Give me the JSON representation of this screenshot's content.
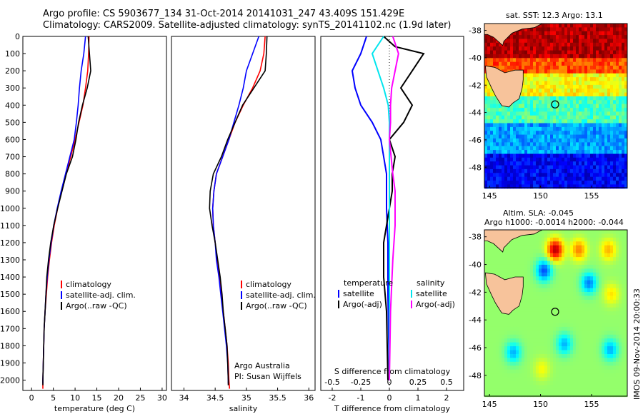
{
  "header": {
    "title_line1": "Argo profile: CS 5903677_134 31-Oct-2014 20141031_247 43.409S 151.429E",
    "title_line2": "Climatology: CARS2009. Satellite-adjusted climatology: synTS_20141102.nc (1.9d later)"
  },
  "colors": {
    "climatology": "#ff0000",
    "satellite": "#0000ff",
    "argo": "#000000",
    "satellite_s": "#00e5ee",
    "argo_s": "#ff00ff",
    "land": "#f7c39b"
  },
  "chart_data": [
    {
      "type": "line",
      "id": "temperature",
      "xlabel": "temperature (deg C)",
      "ylabel": "",
      "xlim": [
        -2,
        31
      ],
      "ylim": [
        2060,
        0
      ],
      "xticks": [
        0,
        5,
        10,
        15,
        20,
        25,
        30
      ],
      "yticks": [
        0,
        100,
        200,
        300,
        400,
        500,
        600,
        700,
        800,
        900,
        1000,
        1100,
        1200,
        1300,
        1400,
        1500,
        1600,
        1700,
        1800,
        1900,
        2000
      ],
      "legend": [
        "climatology",
        "satellite-adj. clim.",
        "Argo(..raw -QC)"
      ],
      "series": [
        {
          "name": "climatology",
          "color": "#ff0000",
          "points": [
            [
              13.2,
              0
            ],
            [
              13.1,
              100
            ],
            [
              12.9,
              200
            ],
            [
              12.4,
              300
            ],
            [
              11.8,
              400
            ],
            [
              10.9,
              500
            ],
            [
              10.0,
              600
            ],
            [
              9.0,
              700
            ],
            [
              7.9,
              800
            ],
            [
              6.9,
              900
            ],
            [
              6.0,
              1000
            ],
            [
              5.2,
              1100
            ],
            [
              4.6,
              1200
            ],
            [
              4.1,
              1300
            ],
            [
              3.7,
              1400
            ],
            [
              3.4,
              1500
            ],
            [
              3.1,
              1600
            ],
            [
              2.9,
              1700
            ],
            [
              2.8,
              1800
            ],
            [
              2.7,
              1900
            ],
            [
              2.6,
              2000
            ],
            [
              2.6,
              2050
            ]
          ]
        },
        {
          "name": "satellite-adj. clim.",
          "color": "#0000ff",
          "points": [
            [
              12.4,
              0
            ],
            [
              12.0,
              100
            ],
            [
              11.4,
              200
            ],
            [
              11.0,
              300
            ],
            [
              10.7,
              400
            ],
            [
              10.3,
              500
            ],
            [
              9.8,
              600
            ],
            [
              8.8,
              700
            ],
            [
              7.8,
              800
            ],
            [
              6.8,
              900
            ],
            [
              5.9,
              1000
            ],
            [
              5.1,
              1100
            ],
            [
              4.5,
              1200
            ],
            [
              4.0,
              1300
            ],
            [
              3.6,
              1400
            ],
            [
              3.3,
              1500
            ],
            [
              3.1,
              1600
            ],
            [
              2.9,
              1700
            ],
            [
              2.8,
              1800
            ],
            [
              2.7,
              1900
            ],
            [
              2.6,
              2000
            ],
            [
              2.6,
              2020
            ]
          ]
        },
        {
          "name": "Argo(..raw -QC)",
          "color": "#000000",
          "points": [
            [
              13.0,
              0
            ],
            [
              13.3,
              100
            ],
            [
              13.6,
              200
            ],
            [
              12.8,
              300
            ],
            [
              11.7,
              400
            ],
            [
              10.8,
              500
            ],
            [
              10.2,
              600
            ],
            [
              9.4,
              700
            ],
            [
              8.0,
              800
            ],
            [
              7.0,
              900
            ],
            [
              6.0,
              1000
            ],
            [
              5.1,
              1100
            ],
            [
              4.4,
              1200
            ],
            [
              3.9,
              1300
            ],
            [
              3.5,
              1400
            ],
            [
              3.3,
              1500
            ],
            [
              3.1,
              1600
            ],
            [
              2.9,
              1700
            ],
            [
              2.8,
              1800
            ],
            [
              2.7,
              1900
            ],
            [
              2.6,
              2000
            ],
            [
              2.6,
              2030
            ]
          ]
        }
      ]
    },
    {
      "type": "line",
      "id": "salinity",
      "xlabel": "salinity",
      "ylabel": "",
      "xlim": [
        33.8,
        36.1
      ],
      "ylim": [
        2060,
        0
      ],
      "xticks": [
        34,
        34.5,
        35,
        35.5,
        36
      ],
      "xticklabels": [
        "34",
        "34.5",
        "35",
        "35.5",
        "36"
      ],
      "legend": [
        "climatology",
        "satellite-adj. clim.",
        "Argo(..raw -QC)"
      ],
      "annotation": [
        "Argo Australia",
        "PI: Susan Wijffels"
      ],
      "series": [
        {
          "name": "climatology",
          "color": "#ff0000",
          "points": [
            [
              35.3,
              0
            ],
            [
              35.28,
              100
            ],
            [
              35.22,
              200
            ],
            [
              35.1,
              300
            ],
            [
              34.95,
              400
            ],
            [
              34.82,
              500
            ],
            [
              34.72,
              600
            ],
            [
              34.62,
              700
            ],
            [
              34.52,
              800
            ],
            [
              34.48,
              900
            ],
            [
              34.46,
              1000
            ],
            [
              34.47,
              1100
            ],
            [
              34.5,
              1200
            ],
            [
              34.53,
              1300
            ],
            [
              34.57,
              1400
            ],
            [
              34.6,
              1500
            ],
            [
              34.63,
              1600
            ],
            [
              34.66,
              1700
            ],
            [
              34.69,
              1800
            ],
            [
              34.71,
              1900
            ],
            [
              34.72,
              2000
            ],
            [
              34.73,
              2050
            ]
          ]
        },
        {
          "name": "satellite-adj. clim.",
          "color": "#0000ff",
          "points": [
            [
              35.2,
              0
            ],
            [
              35.1,
              100
            ],
            [
              35.0,
              200
            ],
            [
              34.95,
              300
            ],
            [
              34.88,
              400
            ],
            [
              34.8,
              500
            ],
            [
              34.72,
              600
            ],
            [
              34.62,
              700
            ],
            [
              34.52,
              800
            ],
            [
              34.48,
              900
            ],
            [
              34.46,
              1000
            ],
            [
              34.47,
              1100
            ],
            [
              34.5,
              1200
            ],
            [
              34.52,
              1300
            ],
            [
              34.56,
              1400
            ],
            [
              34.59,
              1500
            ],
            [
              34.62,
              1600
            ],
            [
              34.65,
              1700
            ],
            [
              34.68,
              1800
            ],
            [
              34.7,
              1900
            ],
            [
              34.71,
              2000
            ],
            [
              34.71,
              2020
            ]
          ]
        },
        {
          "name": "Argo(..raw -QC)",
          "color": "#000000",
          "points": [
            [
              35.33,
              0
            ],
            [
              35.32,
              100
            ],
            [
              35.3,
              200
            ],
            [
              35.12,
              300
            ],
            [
              34.94,
              400
            ],
            [
              34.82,
              500
            ],
            [
              34.7,
              600
            ],
            [
              34.6,
              700
            ],
            [
              34.47,
              800
            ],
            [
              34.42,
              900
            ],
            [
              34.41,
              1000
            ],
            [
              34.45,
              1100
            ],
            [
              34.5,
              1200
            ],
            [
              34.54,
              1300
            ],
            [
              34.58,
              1400
            ],
            [
              34.61,
              1500
            ],
            [
              34.63,
              1600
            ],
            [
              34.66,
              1700
            ],
            [
              34.69,
              1800
            ],
            [
              34.7,
              1900
            ],
            [
              34.71,
              2000
            ],
            [
              34.71,
              2030
            ]
          ]
        }
      ]
    },
    {
      "type": "line",
      "id": "difference",
      "xlabel": "T difference from climatology",
      "xlabel_top": "S difference from climatology",
      "xlim": [
        -2.4,
        2.6
      ],
      "ylim": [
        2060,
        0
      ],
      "xticks": [
        -2,
        -1,
        0,
        1,
        2
      ],
      "s_xticks": [
        -0.5,
        -0.25,
        0,
        0.25,
        0.5
      ],
      "s_xticklabels": [
        "-0.5",
        "-0.25",
        "0",
        "0.25",
        "0.5"
      ],
      "legend_temperature": [
        "temperature",
        "satellite",
        "Argo(-adj)"
      ],
      "legend_salinity": [
        "salinity",
        "satellite",
        "Argo(-adj)"
      ],
      "series": [
        {
          "name": "satellite",
          "color": "#0000ff",
          "units": "T",
          "points": [
            [
              -0.8,
              0
            ],
            [
              -1.0,
              100
            ],
            [
              -1.3,
              200
            ],
            [
              -1.2,
              300
            ],
            [
              -1.0,
              400
            ],
            [
              -0.6,
              500
            ],
            [
              -0.3,
              600
            ],
            [
              -0.2,
              700
            ],
            [
              -0.1,
              800
            ],
            [
              -0.1,
              1000
            ],
            [
              -0.05,
              1200
            ],
            [
              -0.05,
              1500
            ],
            [
              0,
              2000
            ]
          ]
        },
        {
          "name": "Argo(-adj)",
          "color": "#000000",
          "units": "T",
          "points": [
            [
              -0.2,
              0
            ],
            [
              0.2,
              60
            ],
            [
              1.2,
              100
            ],
            [
              0.8,
              200
            ],
            [
              0.4,
              300
            ],
            [
              0.8,
              400
            ],
            [
              0.5,
              500
            ],
            [
              0.0,
              600
            ],
            [
              0.2,
              700
            ],
            [
              0.1,
              800
            ],
            [
              0.1,
              900
            ],
            [
              0.0,
              1000
            ],
            [
              -0.1,
              1100
            ],
            [
              -0.2,
              1200
            ],
            [
              -0.2,
              1300
            ],
            [
              -0.2,
              1400
            ],
            [
              -0.1,
              1600
            ],
            [
              -0.05,
              2000
            ]
          ]
        },
        {
          "name": "satellite",
          "color": "#00e5ee",
          "units": "S",
          "points": [
            [
              -0.05,
              0
            ],
            [
              -0.15,
              100
            ],
            [
              -0.1,
              200
            ],
            [
              -0.05,
              300
            ],
            [
              -0.01,
              400
            ],
            [
              0,
              500
            ],
            [
              0,
              800
            ],
            [
              0,
              1200
            ],
            [
              0,
              2000
            ]
          ]
        },
        {
          "name": "Argo(-adj)",
          "color": "#ff00ff",
          "units": "S",
          "points": [
            [
              0.03,
              0
            ],
            [
              0.08,
              100
            ],
            [
              0.05,
              200
            ],
            [
              0.02,
              300
            ],
            [
              0.01,
              400
            ],
            [
              0.01,
              500
            ],
            [
              0,
              600
            ],
            [
              0.03,
              800
            ],
            [
              0.05,
              900
            ],
            [
              0.05,
              1100
            ],
            [
              0.03,
              1300
            ],
            [
              0.01,
              1600
            ],
            [
              0,
              2000
            ]
          ]
        }
      ]
    },
    {
      "type": "heatmap",
      "id": "sst_map",
      "title": "sat. SST: 12.3 Argo: 13.1",
      "xlim": [
        144.5,
        158.5
      ],
      "ylim": [
        -49.5,
        -37.5
      ],
      "xticks": [
        145,
        150,
        155
      ],
      "yticks": [
        -38,
        -40,
        -42,
        -44,
        -46,
        -48
      ],
      "float_position": [
        151.429,
        -43.409
      ],
      "value_bands": [
        {
          "lat_top": -37.5,
          "lat_bottom": -39.8,
          "value": 0.95
        },
        {
          "lat_top": -39.8,
          "lat_bottom": -41.0,
          "value": 0.8
        },
        {
          "lat_top": -41.0,
          "lat_bottom": -42.8,
          "value": 0.62
        },
        {
          "lat_top": -42.8,
          "lat_bottom": -44.6,
          "value": 0.45
        },
        {
          "lat_top": -44.6,
          "lat_bottom": -46.8,
          "value": 0.28
        },
        {
          "lat_top": -46.8,
          "lat_bottom": -49.5,
          "value": 0.12
        }
      ]
    },
    {
      "type": "heatmap",
      "id": "sla_map",
      "title_line1": "Altim. SLA: -0.045",
      "title_line2": "Argo h1000: -0.0014 h2000: -0.044",
      "xlim": [
        144.5,
        158.5
      ],
      "ylim": [
        -49.5,
        -37.5
      ],
      "xticks": [
        145,
        150,
        155
      ],
      "yticks": [
        -38,
        -40,
        -42,
        -44,
        -46,
        -48
      ],
      "float_position": [
        151.429,
        -43.409
      ],
      "anomalies": [
        {
          "lon": 151.3,
          "lat": -38.8,
          "value": 0.95
        },
        {
          "lon": 153.6,
          "lat": -38.8,
          "value": 0.75
        },
        {
          "lon": 156.5,
          "lat": -38.8,
          "value": 0.7
        },
        {
          "lon": 150.2,
          "lat": -40.3,
          "value": 0.2
        },
        {
          "lon": 154.6,
          "lat": -41.2,
          "value": 0.25
        },
        {
          "lon": 156.8,
          "lat": -42.0,
          "value": 0.65
        },
        {
          "lon": 152.2,
          "lat": -45.6,
          "value": 0.3
        },
        {
          "lon": 156.7,
          "lat": -46.0,
          "value": 0.3
        },
        {
          "lon": 147.2,
          "lat": -46.2,
          "value": 0.3
        },
        {
          "lon": 150.0,
          "lat": -47.4,
          "value": 0.62
        }
      ]
    }
  ],
  "stamp": "IMOS 09-Nov-2014 20:00:33"
}
